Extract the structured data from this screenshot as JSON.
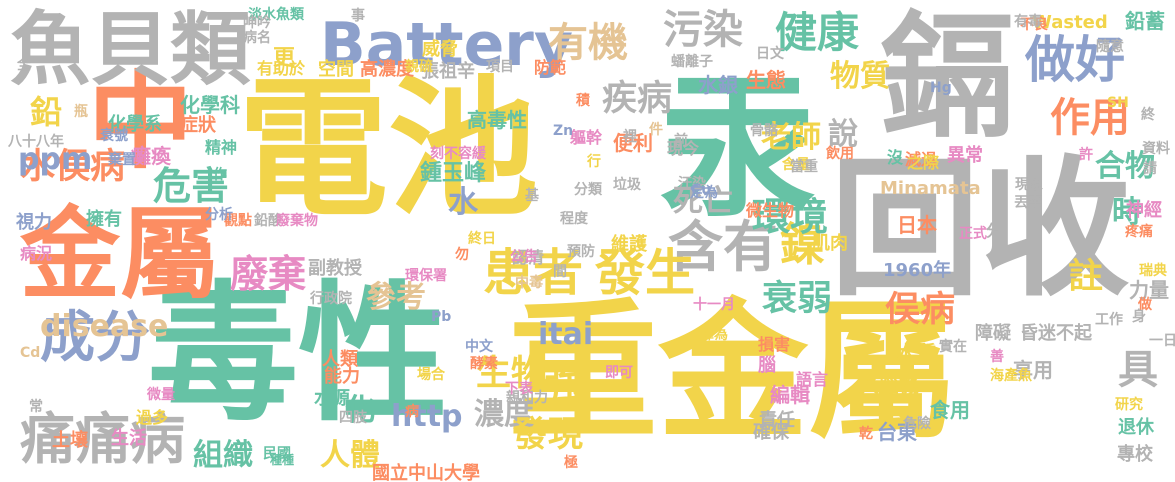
{
  "word_cloud": {
    "palette": {
      "yellow": "#F2D44A",
      "green": "#66C2A5",
      "orange": "#FC8D62",
      "gray": "#B3B3B3",
      "blue": "#8DA0CB",
      "pink": "#E78AC3",
      "tan": "#E5C494",
      "lime": "#A6D854"
    },
    "words": [
      "電池",
      "毒性",
      "重金屬",
      "汞",
      "回收",
      "鎘",
      "金屬",
      "中",
      "魚貝類",
      "Battery",
      "做好",
      "含有",
      "患者",
      "發生",
      "鎳",
      "成分",
      "痛痛病",
      "有機",
      "污染",
      "健康",
      "疾病",
      "作用",
      "廢棄",
      "危害",
      "水俣病",
      "disease",
      "ppm",
      "鉛",
      "環境",
      "死亡",
      "衰弱",
      "生物",
      "強",
      "濃度",
      "發現",
      "itai",
      "http",
      "組織",
      "人體",
      "化",
      "具",
      "物質",
      "合物",
      "說",
      "老師",
      "時",
      "註",
      "俣病",
      "參考",
      "水",
      "鍾玉峰",
      "高毒性",
      "更",
      "水銀",
      "生態",
      "便利",
      "有助於",
      "空間",
      "高濃度",
      "張祖辛",
      "威脅",
      "化學科",
      "化學系",
      "症狀",
      "精神",
      "癱瘓",
      "擁有",
      "視力",
      "副教授",
      "國立中山大學",
      "台東",
      "日本",
      "1960年",
      "Minamata",
      "Wasted",
      "鉛蓄",
      "神經",
      "瑞典",
      "疼痛",
      "退休",
      "研究",
      "專校",
      "力量",
      "肌肉",
      "飲用",
      "異常",
      "減退",
      "沒",
      "之際",
      "編輯",
      "語言",
      "大腦機",
      "責任",
      "確保",
      "食用",
      "水質",
      "享用",
      "維護",
      "認清",
      "損害",
      "腦",
      "障礙",
      "昏迷不起",
      "工作",
      "人類",
      "能力",
      "水源",
      "四肢",
      "土壤",
      "生活",
      "民國",
      "種種",
      "過多",
      "微量",
      "病況",
      "行政院",
      "現今",
      "軀幹",
      "骨骼",
      "微生物",
      "分",
      "淡水魚類",
      "呻吟",
      "八十八年",
      "衰號",
      "棄置",
      "觀點",
      "分析",
      "防範",
      "鉛酸",
      "廢棄物",
      "刻不容緩",
      "蟠離子",
      "十一月",
      "譯為",
      "中文",
      "酵素",
      "親和力",
      "下表",
      "場合",
      "乾",
      "危險",
      "海產魚",
      "實在",
      "善",
      "公告",
      "預防",
      "終日",
      "程度",
      "分類",
      "垃圾",
      "汙染",
      "定為",
      "含量",
      "當重",
      "現象",
      "丟棄",
      "資料",
      "請",
      "許",
      "隨意",
      "正式",
      "不良",
      "日文",
      "項目",
      "病名",
      "事",
      "終",
      "件",
      "Hg",
      "Zn",
      "Cu",
      "Pb",
      "Cd",
      "SH",
      "即可",
      "中毒",
      "間",
      "勿",
      "行",
      "裡",
      "前",
      "有毒",
      "一日",
      "做",
      "身",
      "常",
      "作",
      "病",
      "環保署",
      "親硫",
      "瓶",
      "全",
      "基",
      "極",
      "積",
      "稱",
      "重"
    ]
  }
}
